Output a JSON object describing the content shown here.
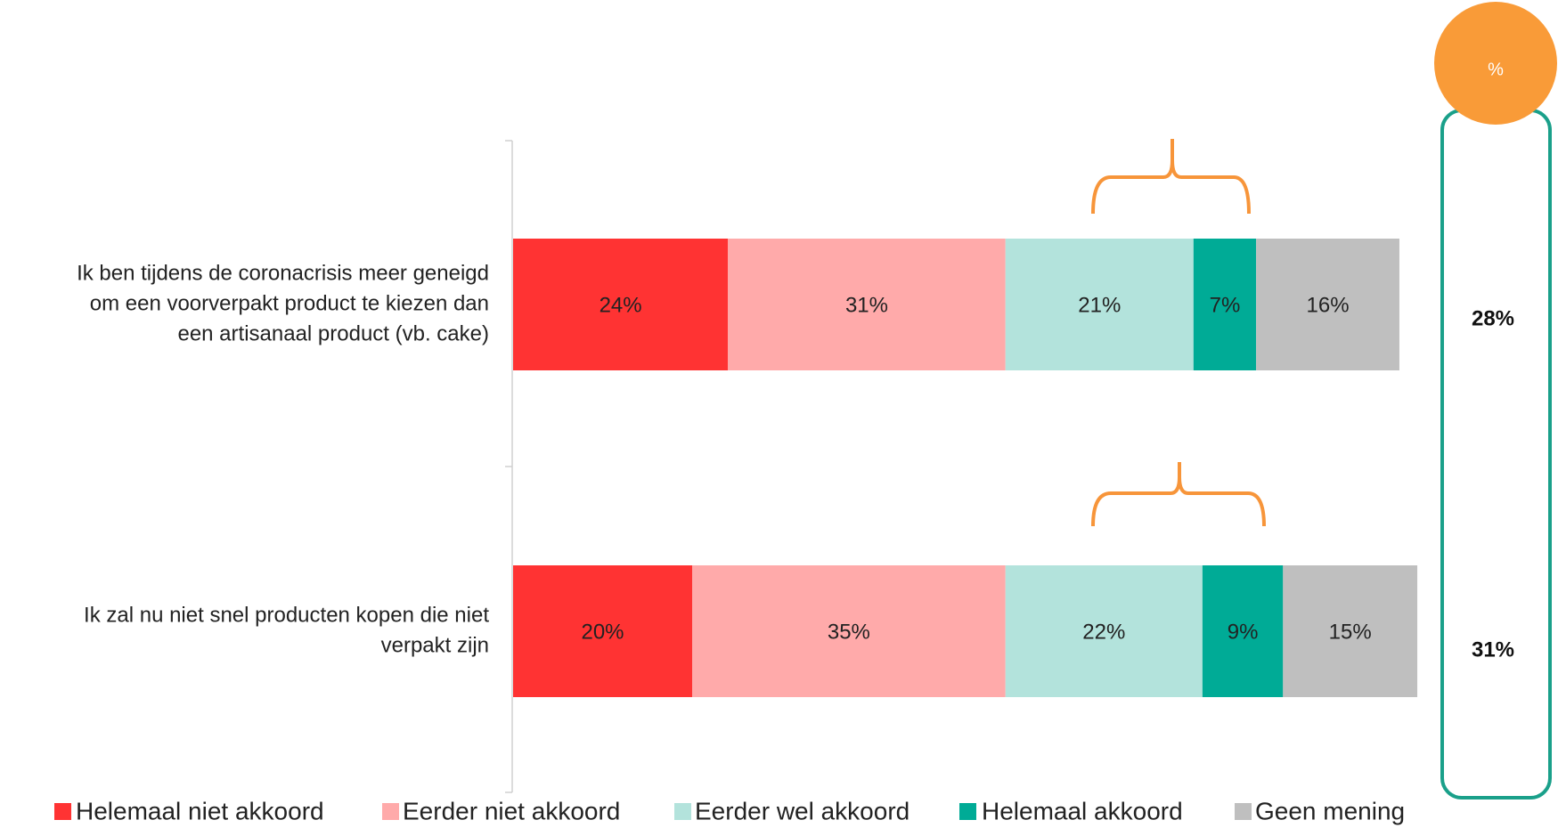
{
  "chart_data": {
    "type": "stacked_bar_horizontal",
    "categories": [
      [
        "Ik ben tijdens de coronacrisis meer geneigd",
        "om een voorverpakt product te kiezen dan",
        "een artisanaal product (vb. cake)"
      ],
      [
        "Ik zal nu niet snel producten kopen die niet",
        "verpakt zijn"
      ]
    ],
    "xlim": [
      0,
      100
    ],
    "series": [
      {
        "name": "Helemaal niet akkoord",
        "color": "#ff3333",
        "values": [
          24,
          20
        ],
        "value_labels": [
          "24%",
          "20%"
        ]
      },
      {
        "name": "Eerder niet akkoord",
        "color": "#ffaaaa",
        "values": [
          31,
          35
        ],
        "value_labels": [
          "31%",
          "35%"
        ]
      },
      {
        "name": "Eerder wel akkoord",
        "color": "#b3e3dc",
        "values": [
          21,
          22
        ],
        "value_labels": [
          "21%",
          "22%"
        ]
      },
      {
        "name": "Helemaal akkoord",
        "color": "#00ab96",
        "values": [
          7,
          9
        ],
        "value_labels": [
          "7%",
          "9%"
        ]
      },
      {
        "name": "Geen mening",
        "color": "#bfbfbf",
        "values": [
          16,
          15
        ],
        "value_labels": [
          "16%",
          "15%"
        ]
      }
    ],
    "totals": {
      "header": "%",
      "values": [
        28,
        31
      ],
      "value_labels": [
        "28%",
        "31%"
      ]
    }
  }
}
